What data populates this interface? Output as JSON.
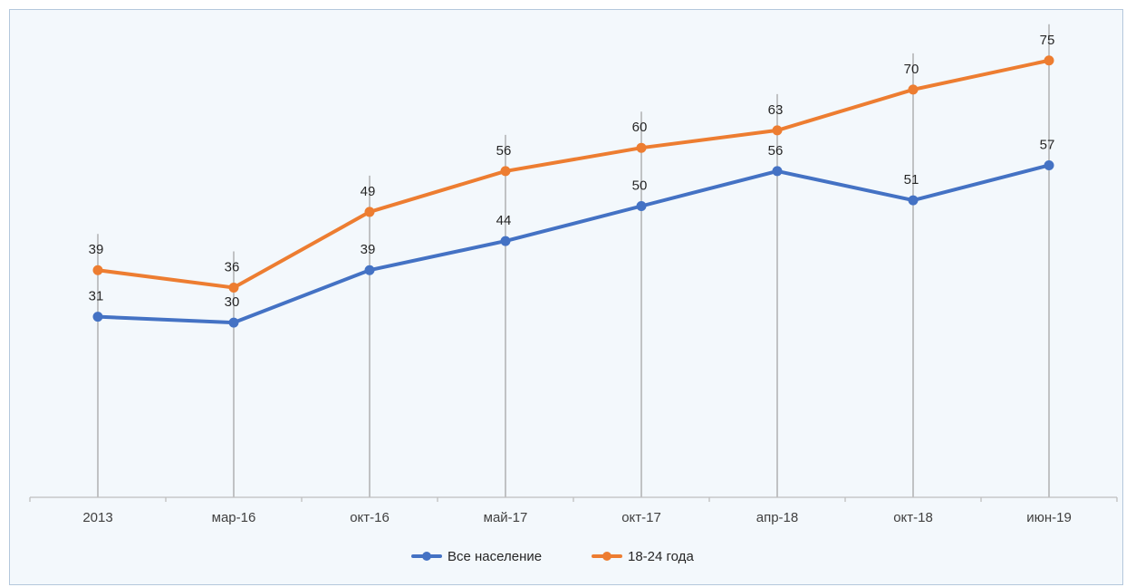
{
  "chart_data": {
    "type": "line",
    "title": "",
    "xlabel": "",
    "ylabel": "",
    "categories": [
      "2013",
      "мар-16",
      "окт-16",
      "май-17",
      "окт-17",
      "апр-18",
      "окт-18",
      "июн-19"
    ],
    "series": [
      {
        "name": "Все население",
        "color": "#4472c4",
        "values": [
          31,
          30,
          39,
          44,
          50,
          56,
          51,
          57
        ]
      },
      {
        "name": "18-24 года",
        "color": "#ed7d31",
        "values": [
          39,
          36,
          49,
          56,
          60,
          63,
          70,
          75
        ]
      }
    ],
    "ylim": [
      0,
      85
    ],
    "grid": false,
    "drop_lines": true,
    "data_labels": true,
    "legend_position": "bottom"
  }
}
